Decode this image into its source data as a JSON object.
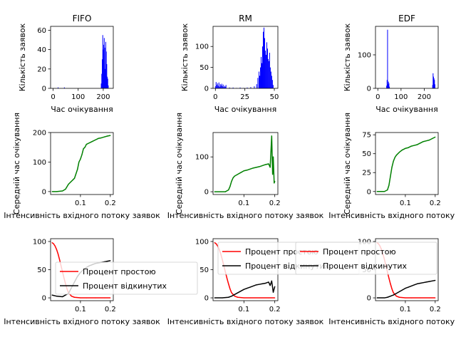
{
  "colors": {
    "histogram": "#0000ff",
    "mean_wait": "#008000",
    "idle": "#ff0000",
    "rejected": "#000000"
  },
  "chart_data": [
    {
      "id": "hist-fifo",
      "type": "bar",
      "title": "FIFO",
      "xlabel": "Час очікування",
      "ylabel": "Кількість заявок",
      "xlim": [
        -10,
        240
      ],
      "ylim": [
        0,
        64
      ],
      "xticks": [
        0,
        100,
        200
      ],
      "yticks": [
        0,
        20,
        40,
        60
      ],
      "x": [
        20,
        45,
        192,
        194,
        196,
        198,
        200,
        202,
        204,
        206,
        208,
        210,
        212,
        214,
        216,
        218,
        220
      ],
      "values": [
        1,
        1,
        5,
        15,
        30,
        55,
        40,
        45,
        52,
        42,
        20,
        48,
        38,
        25,
        12,
        10,
        3
      ]
    },
    {
      "id": "hist-rm",
      "type": "bar",
      "title": "RM",
      "xlabel": "Час очікування",
      "ylabel": "Кількість заявок",
      "xlim": [
        -2,
        53
      ],
      "ylim": [
        0,
        148
      ],
      "xticks": [
        0,
        25,
        50
      ],
      "yticks": [
        0,
        50,
        100
      ],
      "x": [
        0,
        0.6,
        1.2,
        1.8,
        2.4,
        3.0,
        3.6,
        4.2,
        4.8,
        5.4,
        6.0,
        6.6,
        7.2,
        7.8,
        8.4,
        9.0,
        12,
        15,
        18,
        21,
        24,
        27,
        30,
        33,
        35,
        36,
        37,
        37.6,
        38.2,
        38.8,
        39.4,
        40,
        40.6,
        41.2,
        41.8,
        42.4,
        43,
        43.6,
        44.2,
        44.8,
        45.4,
        46,
        46.6,
        47.2,
        47.8,
        48.4,
        49
      ],
      "values": [
        5,
        15,
        8,
        12,
        6,
        14,
        4,
        10,
        7,
        11,
        5,
        9,
        3,
        6,
        4,
        8,
        2,
        2,
        1,
        2,
        1,
        2,
        3,
        5,
        10,
        25,
        40,
        30,
        50,
        75,
        60,
        100,
        135,
        145,
        120,
        90,
        80,
        110,
        95,
        70,
        65,
        85,
        50,
        40,
        30,
        20,
        8
      ]
    },
    {
      "id": "hist-edf",
      "type": "bar",
      "title": "EDF",
      "xlabel": "Час очікування",
      "ylabel": "Кількість заявок",
      "xlim": [
        -10,
        260
      ],
      "ylim": [
        0,
        185
      ],
      "xticks": [
        0,
        100,
        200
      ],
      "yticks": [
        0,
        100
      ],
      "x": [
        38,
        40,
        42,
        44,
        46,
        48,
        50,
        236,
        238,
        240,
        242,
        244,
        246
      ],
      "values": [
        8,
        25,
        175,
        12,
        20,
        15,
        5,
        10,
        45,
        35,
        30,
        25,
        12
      ]
    },
    {
      "id": "mean-fifo",
      "type": "line",
      "xlabel": "Інтенсивність вхідного потоку заявок",
      "ylabel": "Середній час очікування",
      "xlim": [
        0,
        0.21
      ],
      "ylim": [
        -10,
        200
      ],
      "xticks": [
        0.1,
        0.2
      ],
      "yticks": [
        0,
        100,
        200
      ],
      "series": [
        {
          "x": [
            0.005,
            0.02,
            0.04,
            0.05,
            0.06,
            0.07,
            0.075,
            0.08,
            0.085,
            0.09,
            0.095,
            0.1,
            0.105,
            0.11,
            0.115,
            0.12,
            0.13,
            0.14,
            0.15,
            0.16,
            0.17,
            0.18,
            0.19,
            0.2
          ],
          "y": [
            0,
            0,
            2,
            8,
            25,
            35,
            40,
            45,
            60,
            75,
            100,
            110,
            125,
            145,
            150,
            160,
            165,
            170,
            175,
            180,
            182,
            185,
            188,
            190
          ]
        }
      ]
    },
    {
      "id": "mean-rm",
      "type": "line",
      "xlabel": "Інтенсивність вхідного потоку заявок",
      "ylabel": "Середній час очікування",
      "xlim": [
        0,
        0.21
      ],
      "ylim": [
        -8,
        170
      ],
      "xticks": [
        0.1,
        0.2
      ],
      "yticks": [
        0,
        100
      ],
      "series": [
        {
          "x": [
            0.005,
            0.04,
            0.05,
            0.055,
            0.06,
            0.065,
            0.07,
            0.08,
            0.09,
            0.1,
            0.11,
            0.12,
            0.13,
            0.14,
            0.15,
            0.16,
            0.17,
            0.18,
            0.185,
            0.19,
            0.193,
            0.195,
            0.198,
            0.2
          ],
          "y": [
            0,
            0,
            5,
            15,
            30,
            40,
            45,
            50,
            55,
            60,
            62,
            65,
            68,
            70,
            72,
            75,
            78,
            80,
            70,
            160,
            50,
            100,
            25,
            30
          ]
        }
      ]
    },
    {
      "id": "mean-edf",
      "type": "line",
      "xlabel": "Інтенсивність вхідного потоку заявок",
      "ylabel": "Середній час очікування",
      "xlim": [
        0,
        0.21
      ],
      "ylim": [
        -4,
        78
      ],
      "xticks": [
        0.1,
        0.2
      ],
      "yticks": [
        0,
        25,
        50,
        75
      ],
      "series": [
        {
          "x": [
            0.005,
            0.03,
            0.04,
            0.045,
            0.05,
            0.055,
            0.06,
            0.065,
            0.07,
            0.08,
            0.09,
            0.1,
            0.11,
            0.12,
            0.13,
            0.14,
            0.15,
            0.16,
            0.17,
            0.18,
            0.19,
            0.2
          ],
          "y": [
            0,
            0,
            2,
            8,
            20,
            32,
            40,
            45,
            48,
            52,
            55,
            57,
            58,
            60,
            61,
            62,
            64,
            66,
            67,
            68,
            70,
            72
          ]
        }
      ]
    },
    {
      "id": "pct-fifo",
      "type": "line",
      "xlabel": "Інтенсивність вхідного потоку заявок",
      "xlim": [
        0,
        0.21
      ],
      "ylim": [
        -5,
        105
      ],
      "xticks": [
        0.1,
        0.2
      ],
      "yticks": [
        0,
        50,
        100
      ],
      "legend": "center",
      "series": [
        {
          "name": "Процент простою",
          "color": "#ff0000",
          "x": [
            0.005,
            0.01,
            0.015,
            0.02,
            0.025,
            0.03,
            0.035,
            0.04,
            0.045,
            0.05,
            0.055,
            0.06,
            0.07,
            0.08,
            0.1,
            0.12,
            0.15,
            0.18,
            0.2
          ],
          "y": [
            98,
            96,
            92,
            86,
            78,
            68,
            57,
            46,
            35,
            25,
            16,
            9,
            3,
            1,
            0,
            0,
            0,
            0,
            0
          ]
        },
        {
          "name": "Процент відкинутих",
          "color": "#000000",
          "x": [
            0.005,
            0.02,
            0.04,
            0.06,
            0.07,
            0.08,
            0.09,
            0.1,
            0.11,
            0.12,
            0.13,
            0.14,
            0.15,
            0.16,
            0.17,
            0.18,
            0.19,
            0.2
          ],
          "y": [
            5,
            3,
            2,
            8,
            18,
            28,
            38,
            45,
            50,
            54,
            57,
            59,
            61,
            62,
            63,
            64,
            65,
            66
          ]
        }
      ]
    },
    {
      "id": "pct-rm",
      "type": "line",
      "xlabel": "Інтенсивність вхідного потоку заявок",
      "xlim": [
        0,
        0.21
      ],
      "ylim": [
        -5,
        105
      ],
      "xticks": [
        0.1,
        0.2
      ],
      "yticks": [
        0,
        50,
        100
      ],
      "legend": "upper right",
      "series": [
        {
          "name": "Процент простою",
          "color": "#ff0000",
          "x": [
            0.005,
            0.01,
            0.015,
            0.02,
            0.025,
            0.03,
            0.035,
            0.04,
            0.045,
            0.05,
            0.055,
            0.06,
            0.07,
            0.08,
            0.1,
            0.12,
            0.15,
            0.18,
            0.2
          ],
          "y": [
            98,
            96,
            92,
            86,
            78,
            68,
            57,
            46,
            35,
            25,
            16,
            9,
            3,
            1,
            0,
            0,
            0,
            0,
            0
          ]
        },
        {
          "name": "Процент відкинутих",
          "color": "#000000",
          "x": [
            0.005,
            0.03,
            0.05,
            0.06,
            0.07,
            0.08,
            0.09,
            0.1,
            0.11,
            0.12,
            0.13,
            0.14,
            0.15,
            0.16,
            0.17,
            0.18,
            0.185,
            0.19,
            0.195,
            0.2
          ],
          "y": [
            0,
            0,
            1,
            3,
            6,
            9,
            12,
            15,
            17,
            19,
            21,
            23,
            24,
            25,
            26,
            28,
            22,
            30,
            10,
            20
          ]
        }
      ]
    },
    {
      "id": "pct-edf",
      "type": "line",
      "xlabel": "Інтенсивність вхідного потоку заявок",
      "xlim": [
        0,
        0.21
      ],
      "ylim": [
        -5,
        105
      ],
      "xticks": [
        0.1,
        0.2
      ],
      "yticks": [
        0,
        50,
        100
      ],
      "series": [
        {
          "name": "Процент простою",
          "color": "#ff0000",
          "x": [
            0.005,
            0.01,
            0.015,
            0.02,
            0.025,
            0.03,
            0.035,
            0.04,
            0.045,
            0.05,
            0.055,
            0.06,
            0.07,
            0.08,
            0.1,
            0.12,
            0.15,
            0.18,
            0.2
          ],
          "y": [
            98,
            96,
            92,
            86,
            78,
            68,
            57,
            46,
            35,
            25,
            16,
            9,
            3,
            1,
            0,
            0,
            0,
            0,
            0
          ]
        },
        {
          "name": "Процент відкинутих",
          "color": "#000000",
          "x": [
            0.005,
            0.03,
            0.04,
            0.05,
            0.06,
            0.07,
            0.08,
            0.09,
            0.1,
            0.11,
            0.12,
            0.13,
            0.14,
            0.15,
            0.16,
            0.17,
            0.18,
            0.19,
            0.2
          ],
          "y": [
            0,
            0,
            1,
            3,
            5,
            8,
            11,
            14,
            17,
            19,
            21,
            23,
            25,
            26,
            27,
            28,
            29,
            30,
            31
          ]
        }
      ]
    }
  ]
}
